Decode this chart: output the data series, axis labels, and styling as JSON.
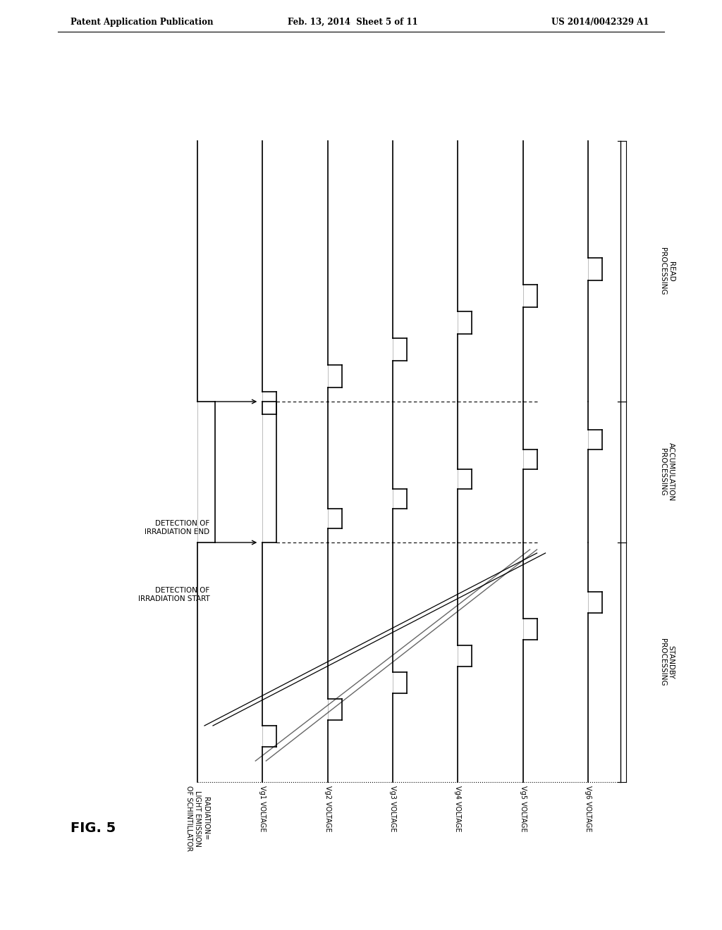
{
  "background_color": "#ffffff",
  "header_left": "Patent Application Publication",
  "header_center": "Feb. 13, 2014  Sheet 5 of 11",
  "header_right": "US 2014/0042329 A1",
  "figure_label": "FIG. 5",
  "row_labels": [
    "RADIATION=\nLIGHT EMISSION\nOF SCHINTILLATOR",
    "Vg1 VOLTAGE",
    "Vg2 VOLTAGE",
    "Vg3 VOLTAGE",
    "Vg4 VOLTAGE",
    "Vg5 VOLTAGE",
    "Vg6 VOLTAGE"
  ],
  "section_labels": [
    "STANDBY\nPROCESSING",
    "ACCUMULATION\nPROCESSING",
    "READ\nPROCESSING"
  ],
  "detection_start_label": "DETECTION OF\nIRRADIATION START",
  "detection_end_label": "DETECTION OF\nIRRADIATION END"
}
